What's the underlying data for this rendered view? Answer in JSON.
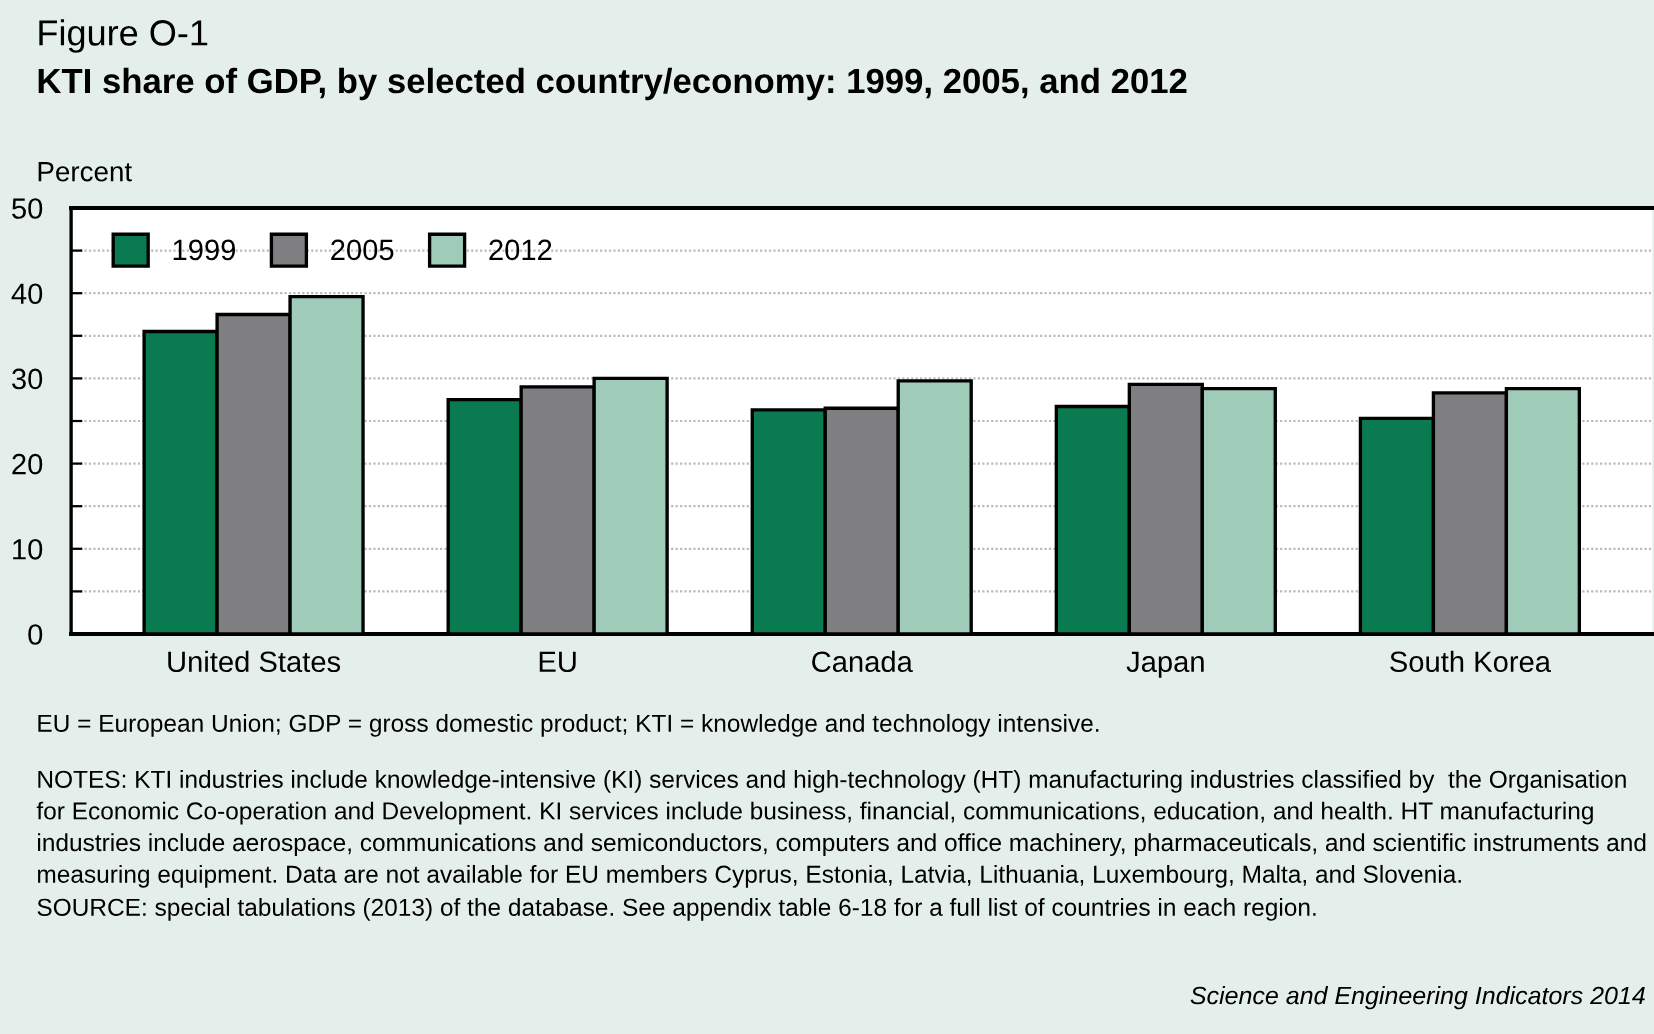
{
  "chart_data": {
    "type": "bar",
    "title": "Figure O-1",
    "subtitle": "KTI share of GDP, by selected country/economy: 1999, 2005, and 2012",
    "ylabel": "Percent",
    "categories": [
      "United States",
      "EU",
      "Canada",
      "Japan",
      "South Korea"
    ],
    "series": [
      {
        "name": "1999",
        "color": "#0a7a50",
        "values": [
          35.5,
          27.5,
          26.3,
          26.7,
          25.3
        ]
      },
      {
        "name": "2005",
        "color": "#7f7f82",
        "values": [
          37.5,
          29.0,
          26.5,
          29.3,
          28.3
        ]
      },
      {
        "name": "2012",
        "color": "#9fcbb9",
        "values": [
          39.6,
          30.0,
          29.7,
          28.8,
          28.8
        ]
      }
    ],
    "ylim": [
      0,
      50
    ],
    "yticks": [
      0,
      {
        "value": 5,
        "label": null
      },
      10,
      {
        "value": 15,
        "label": null
      },
      20,
      {
        "value": 25,
        "label": null
      },
      30,
      {
        "value": 35,
        "label": null
      },
      40,
      {
        "value": 45,
        "label": null
      },
      50
    ],
    "grid": "y",
    "legend": "top left",
    "annotations": [
      "EU = European Union; GDP = gross domestic product; KTI = knowledge and technology intensive.",
      "NOTES: KTI industries include knowledge-intensive (KI) services and high-technology (HT) manufacturing industries classified by  the Organisation for Economic Co-operation and Development. KI services include business, financial, communications, education, and health. HT manufacturing industries include aerospace, communications and semiconductors, computers and office machinery, pharmaceuticals, and scientific instruments and measuring equipment. Data are not available for EU members Cyprus, Estonia, Latvia, Lithuania, Luxembourg, Malta, and Slovenia.",
      "SOURCE: special tabulations (2013) of the database. See appendix table 6-18 for a full list of countries in each region.",
      "Science and Engineering Indicators 2014"
    ]
  }
}
